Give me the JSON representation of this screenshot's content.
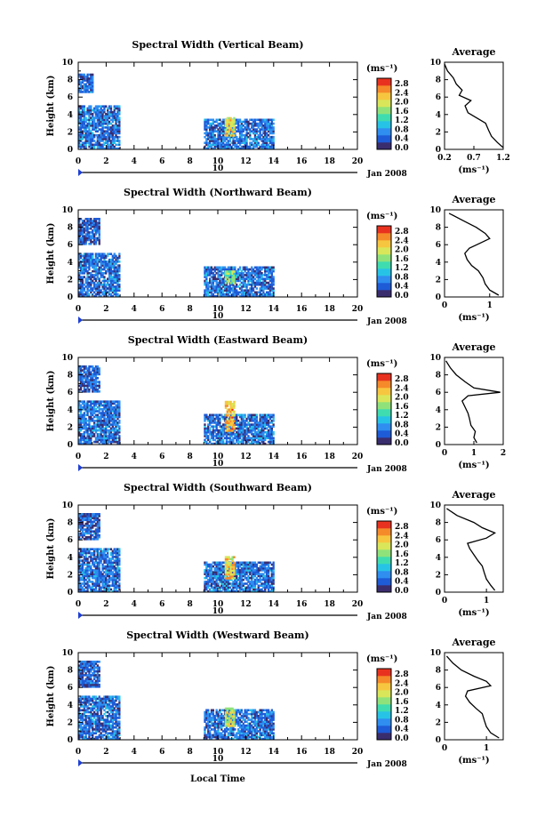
{
  "figure": {
    "x_axis_label": "Local Time",
    "date_label": "Jan 2008",
    "day_marker": "10",
    "unit_label": "(ms⁻¹)",
    "avg_title": "Average",
    "avg_unit": "(ms⁻¹)",
    "y_label": "Height (km)"
  },
  "colorbar": {
    "ticks": [
      "0.0",
      "0.4",
      "0.8",
      "1.2",
      "1.6",
      "2.0",
      "2.4",
      "2.8"
    ],
    "colors": [
      "#3a2d6e",
      "#1e5bd6",
      "#2f8ef0",
      "#27c3e6",
      "#3fdcb0",
      "#8fe27a",
      "#d9e65a",
      "#f7c640",
      "#f58a2a",
      "#e8321f"
    ]
  },
  "chart_data": [
    {
      "type": "heatmap",
      "title": "Spectral Width (Vertical Beam)",
      "x": {
        "range": [
          0,
          20
        ],
        "ticks": [
          0,
          2,
          4,
          6,
          8,
          10,
          12,
          14,
          16,
          18,
          20
        ]
      },
      "y": {
        "range": [
          0,
          10
        ],
        "ticks": [
          0,
          2,
          4,
          6,
          8,
          10
        ]
      },
      "z": {
        "range": [
          0,
          2.8
        ]
      },
      "data_blocks": [
        {
          "t": [
            0,
            3
          ],
          "h": [
            0,
            5
          ],
          "level": 0.6
        },
        {
          "t": [
            0,
            1
          ],
          "h": [
            6.5,
            8.5
          ],
          "level": 0.5
        },
        {
          "t": [
            9,
            14
          ],
          "h": [
            0,
            3.5
          ],
          "level": 0.6
        },
        {
          "t": [
            10.5,
            11.2
          ],
          "h": [
            1.5,
            3.5
          ],
          "level": 2.2
        }
      ],
      "average": {
        "xlim": [
          0.2,
          1.2
        ],
        "xticks": [
          "0.2",
          "0.7",
          "1.2"
        ],
        "profile": [
          [
            1.2,
            0.2
          ],
          [
            1.1,
            0.8
          ],
          [
            1.0,
            1.5
          ],
          [
            0.95,
            2.2
          ],
          [
            0.9,
            3
          ],
          [
            0.75,
            3.6
          ],
          [
            0.6,
            4.2
          ],
          [
            0.55,
            5
          ],
          [
            0.65,
            5.6
          ],
          [
            0.45,
            6.2
          ],
          [
            0.5,
            6.8
          ],
          [
            0.4,
            7.5
          ],
          [
            0.35,
            8.2
          ],
          [
            0.25,
            9
          ],
          [
            0.2,
            9.8
          ]
        ]
      }
    },
    {
      "type": "heatmap",
      "title": "Spectral Width (Northward Beam)",
      "x": {
        "range": [
          0,
          20
        ],
        "ticks": [
          0,
          2,
          4,
          6,
          8,
          10,
          12,
          14,
          16,
          18,
          20
        ]
      },
      "y": {
        "range": [
          0,
          10
        ],
        "ticks": [
          0,
          2,
          4,
          6,
          8,
          10
        ]
      },
      "z": {
        "range": [
          0,
          2.8
        ]
      },
      "data_blocks": [
        {
          "t": [
            0,
            3
          ],
          "h": [
            0,
            5
          ],
          "level": 0.6
        },
        {
          "t": [
            0,
            1.5
          ],
          "h": [
            6,
            9
          ],
          "level": 0.5
        },
        {
          "t": [
            9,
            14
          ],
          "h": [
            0,
            3.5
          ],
          "level": 0.6
        },
        {
          "t": [
            10.5,
            11.2
          ],
          "h": [
            1.5,
            3
          ],
          "level": 1.6
        }
      ],
      "average": {
        "xlim": [
          0,
          1.3
        ],
        "xticks": [
          "0",
          "1"
        ],
        "profile": [
          [
            1.2,
            0.2
          ],
          [
            1.0,
            0.8
          ],
          [
            0.9,
            1.5
          ],
          [
            0.85,
            2.2
          ],
          [
            0.75,
            3
          ],
          [
            0.6,
            3.6
          ],
          [
            0.5,
            4.3
          ],
          [
            0.45,
            5
          ],
          [
            0.55,
            5.6
          ],
          [
            0.8,
            6.2
          ],
          [
            1.0,
            6.7
          ],
          [
            0.9,
            7.3
          ],
          [
            0.7,
            8
          ],
          [
            0.4,
            8.8
          ],
          [
            0.1,
            9.6
          ]
        ]
      }
    },
    {
      "type": "heatmap",
      "title": "Spectral Width (Eastward Beam)",
      "x": {
        "range": [
          0,
          20
        ],
        "ticks": [
          0,
          2,
          4,
          6,
          8,
          10,
          12,
          14,
          16,
          18,
          20
        ]
      },
      "y": {
        "range": [
          0,
          10
        ],
        "ticks": [
          0,
          2,
          4,
          6,
          8,
          10
        ]
      },
      "z": {
        "range": [
          0,
          2.8
        ]
      },
      "data_blocks": [
        {
          "t": [
            0,
            3
          ],
          "h": [
            0,
            5
          ],
          "level": 0.6
        },
        {
          "t": [
            0,
            1.5
          ],
          "h": [
            6,
            9
          ],
          "level": 0.5
        },
        {
          "t": [
            9,
            14
          ],
          "h": [
            0,
            3.5
          ],
          "level": 0.6
        },
        {
          "t": [
            10.5,
            11.2
          ],
          "h": [
            1.5,
            5
          ],
          "level": 2.4
        }
      ],
      "average": {
        "xlim": [
          0,
          2
        ],
        "xticks": [
          "0",
          "1",
          "2"
        ],
        "profile": [
          [
            1.1,
            0.2
          ],
          [
            1.0,
            0.8
          ],
          [
            1.05,
            1.5
          ],
          [
            0.9,
            2.2
          ],
          [
            0.85,
            3
          ],
          [
            0.8,
            3.6
          ],
          [
            0.7,
            4.3
          ],
          [
            0.6,
            5
          ],
          [
            0.8,
            5.6
          ],
          [
            1.9,
            6.0
          ],
          [
            1.0,
            6.5
          ],
          [
            0.7,
            7.2
          ],
          [
            0.4,
            8
          ],
          [
            0.2,
            8.8
          ],
          [
            0.05,
            9.6
          ]
        ]
      }
    },
    {
      "type": "heatmap",
      "title": "Spectral Width (Southward Beam)",
      "x": {
        "range": [
          0,
          20
        ],
        "ticks": [
          0,
          2,
          4,
          6,
          8,
          10,
          12,
          14,
          16,
          18,
          20
        ]
      },
      "y": {
        "range": [
          0,
          10
        ],
        "ticks": [
          0,
          2,
          4,
          6,
          8,
          10
        ]
      },
      "z": {
        "range": [
          0,
          2.8
        ]
      },
      "data_blocks": [
        {
          "t": [
            0,
            3
          ],
          "h": [
            0,
            5
          ],
          "level": 0.6
        },
        {
          "t": [
            0,
            1.5
          ],
          "h": [
            6,
            9
          ],
          "level": 0.5
        },
        {
          "t": [
            9,
            14
          ],
          "h": [
            0,
            3.5
          ],
          "level": 0.6
        },
        {
          "t": [
            10.5,
            11.2
          ],
          "h": [
            1.5,
            4
          ],
          "level": 2.2
        }
      ],
      "average": {
        "xlim": [
          0,
          1.4
        ],
        "xticks": [
          "0",
          "1"
        ],
        "profile": [
          [
            1.2,
            0.2
          ],
          [
            1.1,
            0.8
          ],
          [
            1.0,
            1.5
          ],
          [
            0.95,
            2.2
          ],
          [
            0.9,
            3
          ],
          [
            0.8,
            3.6
          ],
          [
            0.7,
            4.3
          ],
          [
            0.6,
            5
          ],
          [
            0.55,
            5.6
          ],
          [
            1.0,
            6.2
          ],
          [
            1.2,
            6.8
          ],
          [
            0.9,
            7.4
          ],
          [
            0.7,
            8
          ],
          [
            0.3,
            8.8
          ],
          [
            0.05,
            9.6
          ]
        ]
      }
    },
    {
      "type": "heatmap",
      "title": "Spectral Width (Westward Beam)",
      "x": {
        "range": [
          0,
          20
        ],
        "ticks": [
          0,
          2,
          4,
          6,
          8,
          10,
          12,
          14,
          16,
          18,
          20
        ]
      },
      "y": {
        "range": [
          0,
          10
        ],
        "ticks": [
          0,
          2,
          4,
          6,
          8,
          10
        ]
      },
      "z": {
        "range": [
          0,
          2.8
        ]
      },
      "data_blocks": [
        {
          "t": [
            0,
            3
          ],
          "h": [
            0,
            5
          ],
          "level": 0.6
        },
        {
          "t": [
            0,
            1.5
          ],
          "h": [
            6,
            9
          ],
          "level": 0.5
        },
        {
          "t": [
            9,
            14
          ],
          "h": [
            0,
            3.5
          ],
          "level": 0.6
        },
        {
          "t": [
            10.5,
            11.2
          ],
          "h": [
            1.5,
            3.5
          ],
          "level": 2.0
        }
      ],
      "average": {
        "xlim": [
          0,
          1.4
        ],
        "xticks": [
          "0",
          "1"
        ],
        "profile": [
          [
            1.3,
            0.2
          ],
          [
            1.1,
            0.8
          ],
          [
            1.0,
            1.5
          ],
          [
            0.95,
            2.2
          ],
          [
            0.9,
            3
          ],
          [
            0.75,
            3.6
          ],
          [
            0.6,
            4.3
          ],
          [
            0.5,
            5
          ],
          [
            0.55,
            5.6
          ],
          [
            1.1,
            6.2
          ],
          [
            1.0,
            6.7
          ],
          [
            0.7,
            7.3
          ],
          [
            0.4,
            8
          ],
          [
            0.2,
            8.8
          ],
          [
            0.05,
            9.6
          ]
        ]
      }
    }
  ]
}
